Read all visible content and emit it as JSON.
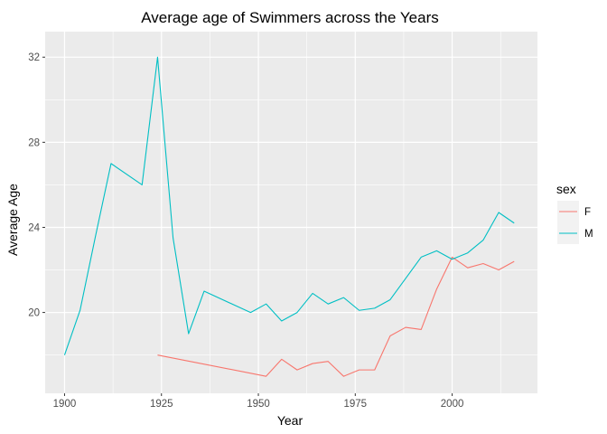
{
  "chart_data": {
    "type": "line",
    "title": "Average age of Swimmers across the Years",
    "xlabel": "Year",
    "ylabel": "Average Age",
    "xlim": [
      1895,
      2022
    ],
    "ylim": [
      16.2,
      33.2
    ],
    "x_ticks": [
      1900,
      1925,
      1950,
      1975,
      2000
    ],
    "y_ticks": [
      20,
      24,
      28,
      32
    ],
    "grid": true,
    "legend": {
      "title": "sex",
      "position": "right"
    },
    "series": [
      {
        "name": "F",
        "color": "#F8766D",
        "x": [
          1924,
          1952,
          1956,
          1960,
          1964,
          1968,
          1972,
          1976,
          1980,
          1984,
          1988,
          1992,
          1996,
          2000,
          2004,
          2008,
          2012,
          2016
        ],
        "y": [
          18.0,
          17.0,
          17.8,
          17.3,
          17.6,
          17.7,
          17.0,
          17.3,
          17.3,
          18.9,
          19.3,
          19.2,
          21.1,
          22.6,
          22.1,
          22.3,
          22.0,
          22.4
        ]
      },
      {
        "name": "M",
        "color": "#00BFC4",
        "x": [
          1900,
          1904,
          1908,
          1912,
          1920,
          1924,
          1928,
          1932,
          1936,
          1948,
          1952,
          1956,
          1960,
          1964,
          1968,
          1972,
          1976,
          1980,
          1984,
          1988,
          1992,
          1996,
          2000,
          2004,
          2008,
          2012,
          2016
        ],
        "y": [
          18.0,
          20.1,
          23.6,
          27.0,
          26.0,
          32.0,
          23.5,
          19.0,
          21.0,
          20.0,
          20.4,
          19.6,
          20.0,
          20.9,
          20.4,
          20.7,
          20.1,
          20.2,
          20.6,
          21.6,
          22.6,
          22.9,
          22.5,
          22.8,
          23.4,
          24.7,
          24.2
        ]
      }
    ]
  }
}
